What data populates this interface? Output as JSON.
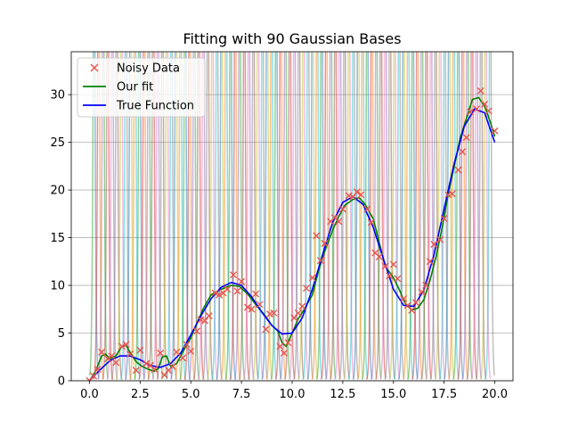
{
  "chart_data": {
    "type": "line",
    "title": "Fitting with 90 Gaussian Bases",
    "xlabel": "",
    "ylabel": "",
    "xlim": [
      -0.9,
      20.9
    ],
    "ylim": [
      0,
      34.5
    ],
    "xticks": [
      0.0,
      2.5,
      5.0,
      7.5,
      10.0,
      12.5,
      15.0,
      17.5,
      20.0
    ],
    "xtick_labels": [
      "0.0",
      "2.5",
      "5.0",
      "7.5",
      "10.0",
      "12.5",
      "15.0",
      "17.5",
      "20.0"
    ],
    "yticks": [
      0,
      5,
      10,
      15,
      20,
      25,
      30
    ],
    "ytick_labels": [
      "0",
      "5",
      "10",
      "15",
      "20",
      "25",
      "30"
    ],
    "grid": "y",
    "legend_position": "top-left",
    "legend": [
      {
        "label": "Noisy Data",
        "color": "#e8554e",
        "marker": "x"
      },
      {
        "label": "Our fit",
        "color": "#008000",
        "marker": "line"
      },
      {
        "label": "True Function",
        "color": "#0000ff",
        "marker": "line"
      }
    ],
    "series": [
      {
        "name": "True Function",
        "color": "#0000ff",
        "x": [
          0,
          0.5,
          1,
          1.5,
          2,
          2.5,
          3,
          3.5,
          4,
          4.5,
          5,
          5.5,
          6,
          6.5,
          7,
          7.5,
          8,
          8.5,
          9,
          9.5,
          10,
          10.5,
          11,
          11.5,
          12,
          12.5,
          13,
          13.5,
          14,
          14.5,
          15,
          15.5,
          16,
          16.5,
          17,
          17.5,
          18,
          18.5,
          19,
          19.5,
          20
        ],
        "y": [
          0,
          1.1,
          2.1,
          2.6,
          2.6,
          2.2,
          1.6,
          1.4,
          1.8,
          2.9,
          4.8,
          6.8,
          8.6,
          9.8,
          10.3,
          10.0,
          8.8,
          7.2,
          5.8,
          4.9,
          5.0,
          6.6,
          9.6,
          13.2,
          16.6,
          18.7,
          19.3,
          18.5,
          16.1,
          12.8,
          9.6,
          7.9,
          7.8,
          9.5,
          13.2,
          18.0,
          22.8,
          26.7,
          28.5,
          28.1,
          25.0
        ]
      },
      {
        "name": "Our fit",
        "color": "#008000",
        "x": [
          0,
          0.3,
          0.6,
          0.8,
          1.0,
          1.3,
          1.6,
          1.8,
          2.0,
          2.3,
          2.6,
          2.9,
          3.2,
          3.4,
          3.6,
          3.8,
          4.0,
          4.3,
          4.6,
          5.0,
          5.3,
          5.6,
          6.0,
          6.5,
          7.0,
          7.4,
          7.8,
          8.2,
          8.6,
          9.0,
          9.3,
          9.5,
          9.7,
          10.0,
          10.3,
          10.6,
          11.0,
          11.3,
          11.6,
          12.0,
          12.3,
          12.6,
          13.0,
          13.3,
          13.6,
          14.0,
          14.3,
          14.6,
          15.0,
          15.3,
          15.6,
          15.9,
          16.2,
          16.5,
          16.8,
          17.1,
          17.4,
          17.7,
          18.0,
          18.3,
          18.6,
          18.9,
          19.2,
          19.5,
          19.8,
          20.0
        ],
        "y": [
          0,
          1.0,
          2.6,
          2.8,
          2.3,
          2.6,
          3.6,
          3.7,
          3.0,
          2.0,
          1.5,
          1.2,
          1.0,
          1.3,
          2.5,
          2.6,
          1.5,
          1.8,
          3.0,
          4.5,
          6.0,
          7.5,
          9.0,
          9.6,
          10.0,
          9.9,
          9.1,
          8.0,
          7.0,
          5.8,
          5.2,
          4.0,
          3.6,
          5.0,
          6.5,
          7.5,
          9.0,
          11.5,
          13.5,
          15.8,
          17.2,
          18.4,
          19.0,
          19.2,
          18.5,
          17.0,
          14.5,
          12.0,
          10.8,
          9.5,
          8.0,
          7.4,
          7.6,
          8.5,
          10.5,
          13.0,
          16.0,
          19.5,
          22.5,
          25.5,
          27.5,
          29.5,
          29.7,
          28.8,
          27.0,
          25.6
        ]
      }
    ],
    "noisy_data": {
      "name": "Noisy Data",
      "color": "#e8554e",
      "x": [
        0.0,
        0.2,
        0.4,
        0.6,
        0.9,
        1.1,
        1.3,
        1.6,
        1.8,
        2.0,
        2.3,
        2.5,
        2.8,
        3.0,
        3.2,
        3.5,
        3.7,
        3.9,
        4.1,
        4.3,
        4.6,
        4.8,
        5.0,
        5.3,
        5.5,
        5.7,
        5.9,
        6.2,
        6.4,
        6.6,
        6.8,
        7.1,
        7.3,
        7.5,
        7.8,
        8.0,
        8.2,
        8.4,
        8.7,
        8.9,
        9.1,
        9.4,
        9.6,
        9.8,
        10.1,
        10.3,
        10.5,
        10.7,
        11.0,
        11.2,
        11.4,
        11.6,
        11.9,
        12.1,
        12.3,
        12.5,
        12.8,
        13.0,
        13.2,
        13.4,
        13.7,
        13.9,
        14.1,
        14.3,
        14.6,
        14.8,
        15.0,
        15.2,
        15.5,
        15.7,
        15.9,
        16.1,
        16.4,
        16.6,
        16.8,
        17.0,
        17.3,
        17.5,
        17.7,
        17.9,
        18.2,
        18.4,
        18.6,
        18.8,
        19.1,
        19.3,
        19.5,
        19.7,
        20.0
      ],
      "y": [
        0.0,
        0.5,
        1.2,
        3.0,
        2.3,
        2.6,
        1.9,
        3.6,
        3.8,
        2.8,
        1.1,
        3.2,
        1.8,
        1.6,
        1.2,
        2.9,
        0.6,
        1.1,
        1.5,
        3.0,
        2.4,
        3.8,
        3.1,
        5.2,
        6.4,
        6.3,
        6.8,
        9.2,
        9.0,
        9.2,
        9.6,
        11.1,
        9.4,
        10.4,
        7.7,
        7.5,
        9.1,
        8.0,
        5.4,
        7.0,
        7.1,
        3.6,
        2.9,
        4.0,
        6.6,
        7.1,
        7.8,
        9.7,
        10.8,
        15.2,
        12.6,
        14.4,
        16.7,
        17.1,
        16.7,
        18.0,
        19.4,
        19.3,
        19.8,
        19.5,
        18.0,
        16.6,
        13.4,
        13.0,
        12.0,
        11.0,
        12.2,
        10.7,
        8.6,
        7.9,
        7.4,
        8.2,
        9.3,
        10.0,
        12.5,
        14.3,
        14.8,
        17.0,
        19.5,
        19.6,
        22.1,
        24.0,
        25.5,
        28.2,
        28.5,
        30.4,
        29.0,
        28.3,
        26.2
      ]
    },
    "gaussian_bases": {
      "count": 90,
      "x_range": [
        0,
        20
      ],
      "width": 0.12,
      "amplitude": 400,
      "colors": [
        "#1f77b4",
        "#ff7f0e",
        "#2ca02c",
        "#d62728",
        "#9467bd",
        "#8c564b",
        "#e377c2",
        "#7f7f7f",
        "#bcbd22",
        "#17becf"
      ]
    }
  }
}
